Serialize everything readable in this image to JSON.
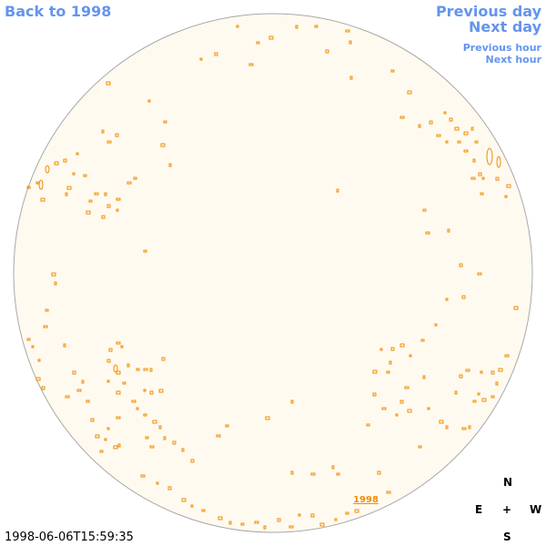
{
  "nav": {
    "back": "Back to 1998",
    "previous_day": "Previous day",
    "next_day": "Next day",
    "previous_hour": "Previous hour",
    "next_hour": "Next hour"
  },
  "disk_label": "1998",
  "timestamp": "1998-06-06T15:59:35",
  "compass": {
    "north": "N",
    "east": "E",
    "center": "+",
    "west": "W",
    "south": "S"
  }
}
